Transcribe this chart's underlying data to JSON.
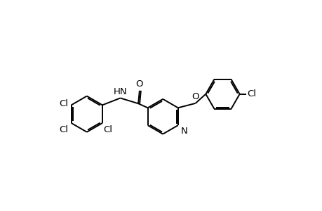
{
  "bg_color": "#ffffff",
  "line_color": "#000000",
  "line_width": 1.4,
  "font_size": 9.5,
  "xlim": [
    0,
    10
  ],
  "ylim": [
    0,
    6.5
  ]
}
